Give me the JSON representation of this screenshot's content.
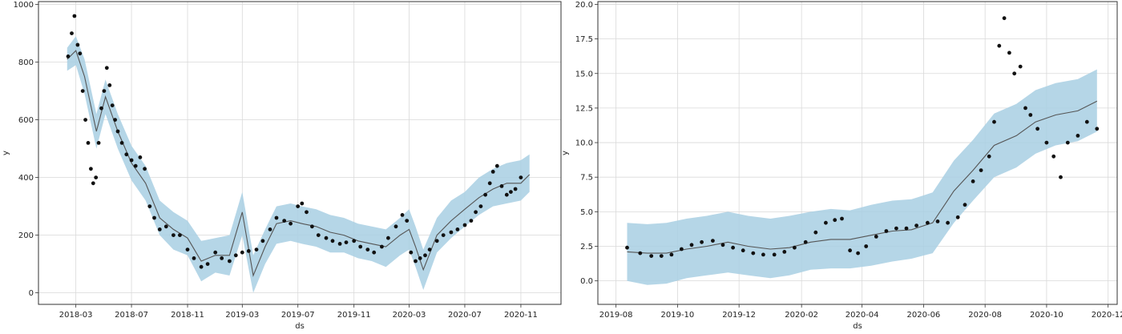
{
  "colors": {
    "band": "#a8cfe3",
    "trend": "#555555",
    "point": "#111111",
    "grid": "#d9d9d9"
  },
  "chart_data": [
    {
      "type": "line",
      "xlabel": "ds",
      "ylabel": "y",
      "x_ticks": [
        "2018-03",
        "2018-07",
        "2018-11",
        "2019-03",
        "2019-07",
        "2019-11",
        "2020-03",
        "2020-07",
        "2020-11"
      ],
      "y_ticks": [
        "0",
        "200",
        "400",
        "600",
        "800",
        "1000"
      ],
      "xlim": [
        "2017-12-09",
        "2021-01-28"
      ],
      "ylim": [
        -40,
        1010
      ],
      "grid": true,
      "forecast": {
        "x": [
          "2018-02-10",
          "2018-03-01",
          "2018-03-20",
          "2018-04-15",
          "2018-05-05",
          "2018-06-01",
          "2018-07-01",
          "2018-08-01",
          "2018-09-01",
          "2018-10-01",
          "2018-11-01",
          "2018-12-01",
          "2019-01-01",
          "2019-02-01",
          "2019-03-01",
          "2019-03-25",
          "2019-04-20",
          "2019-05-15",
          "2019-06-15",
          "2019-07-10",
          "2019-08-10",
          "2019-09-10",
          "2019-10-10",
          "2019-11-10",
          "2019-12-10",
          "2020-01-10",
          "2020-02-10",
          "2020-03-01",
          "2020-03-15",
          "2020-04-01",
          "2020-05-01",
          "2020-06-01",
          "2020-07-01",
          "2020-08-01",
          "2020-09-01",
          "2020-10-01",
          "2020-11-01",
          "2020-11-20"
        ],
        "yhat": [
          810,
          840,
          750,
          560,
          680,
          560,
          450,
          380,
          260,
          220,
          190,
          110,
          130,
          130,
          280,
          60,
          160,
          240,
          250,
          240,
          230,
          210,
          200,
          180,
          170,
          160,
          200,
          220,
          160,
          80,
          200,
          250,
          290,
          330,
          360,
          380,
          380,
          410
        ],
        "lower": [
          770,
          790,
          690,
          500,
          620,
          500,
          390,
          320,
          200,
          150,
          130,
          40,
          70,
          60,
          200,
          0,
          100,
          170,
          180,
          170,
          160,
          140,
          140,
          120,
          110,
          90,
          130,
          150,
          90,
          10,
          140,
          190,
          230,
          270,
          300,
          310,
          320,
          350
        ],
        "upper": [
          850,
          890,
          810,
          620,
          740,
          620,
          510,
          440,
          320,
          280,
          250,
          180,
          190,
          200,
          350,
          130,
          220,
          300,
          310,
          300,
          290,
          270,
          260,
          240,
          230,
          220,
          260,
          290,
          230,
          150,
          260,
          320,
          350,
          400,
          430,
          450,
          460,
          480
        ]
      },
      "observed": {
        "x": [
          "2018-02-12",
          "2018-02-20",
          "2018-02-26",
          "2018-03-05",
          "2018-03-10",
          "2018-03-16",
          "2018-03-22",
          "2018-03-28",
          "2018-04-03",
          "2018-04-08",
          "2018-04-14",
          "2018-04-20",
          "2018-04-26",
          "2018-05-02",
          "2018-05-08",
          "2018-05-14",
          "2018-05-20",
          "2018-05-26",
          "2018-06-01",
          "2018-06-10",
          "2018-06-20",
          "2018-07-01",
          "2018-07-10",
          "2018-07-20",
          "2018-07-30",
          "2018-08-10",
          "2018-08-20",
          "2018-09-01",
          "2018-09-15",
          "2018-10-01",
          "2018-10-15",
          "2018-11-01",
          "2018-11-15",
          "2018-12-01",
          "2018-12-15",
          "2019-01-01",
          "2019-01-15",
          "2019-02-01",
          "2019-02-15",
          "2019-03-01",
          "2019-03-15",
          "2019-04-01",
          "2019-04-15",
          "2019-05-01",
          "2019-05-15",
          "2019-06-01",
          "2019-06-15",
          "2019-07-01",
          "2019-07-10",
          "2019-07-20",
          "2019-08-01",
          "2019-08-15",
          "2019-09-01",
          "2019-09-15",
          "2019-10-01",
          "2019-10-15",
          "2019-11-01",
          "2019-11-15",
          "2019-12-01",
          "2019-12-15",
          "2020-01-01",
          "2020-01-15",
          "2020-02-01",
          "2020-02-15",
          "2020-02-25",
          "2020-03-05",
          "2020-03-15",
          "2020-03-25",
          "2020-04-05",
          "2020-04-15",
          "2020-05-01",
          "2020-05-15",
          "2020-06-01",
          "2020-06-15",
          "2020-07-01",
          "2020-07-15",
          "2020-07-25",
          "2020-08-05",
          "2020-08-15",
          "2020-08-25",
          "2020-09-01",
          "2020-09-10",
          "2020-09-20",
          "2020-10-01",
          "2020-10-10",
          "2020-10-20",
          "2020-11-01"
        ],
        "y": [
          820,
          900,
          960,
          860,
          830,
          700,
          600,
          520,
          430,
          380,
          400,
          520,
          640,
          700,
          780,
          720,
          650,
          600,
          560,
          520,
          480,
          460,
          440,
          470,
          430,
          300,
          260,
          220,
          230,
          200,
          200,
          150,
          120,
          90,
          100,
          140,
          120,
          110,
          130,
          140,
          145,
          150,
          180,
          220,
          260,
          250,
          240,
          300,
          310,
          280,
          230,
          200,
          190,
          180,
          170,
          175,
          180,
          160,
          150,
          140,
          160,
          190,
          230,
          270,
          250,
          140,
          110,
          120,
          130,
          150,
          180,
          200,
          210,
          220,
          235,
          250,
          280,
          300,
          340,
          380,
          420,
          440,
          370,
          340,
          350,
          360,
          400
        ]
      }
    },
    {
      "type": "line",
      "xlabel": "ds",
      "ylabel": "y",
      "x_ticks": [
        "2019-08",
        "2019-10",
        "2019-12",
        "2020-02",
        "2020-04",
        "2020-06",
        "2020-08",
        "2020-10",
        "2020-12"
      ],
      "y_ticks": [
        "0.0",
        "2.5",
        "5.0",
        "7.5",
        "10.0",
        "12.5",
        "15.0",
        "17.5",
        "20.0"
      ],
      "xlim": [
        "2019-07-14",
        "2020-12-10"
      ],
      "ylim": [
        -1.7,
        20.2
      ],
      "grid": true,
      "forecast": {
        "x": [
          "2019-08-12",
          "2019-09-01",
          "2019-09-20",
          "2019-10-10",
          "2019-10-30",
          "2019-11-20",
          "2019-12-10",
          "2020-01-01",
          "2020-01-20",
          "2020-02-10",
          "2020-03-01",
          "2020-03-20",
          "2020-04-10",
          "2020-05-01",
          "2020-05-20",
          "2020-06-10",
          "2020-07-01",
          "2020-07-20",
          "2020-08-10",
          "2020-09-01",
          "2020-09-20",
          "2020-10-10",
          "2020-11-01",
          "2020-11-20"
        ],
        "yhat": [
          2.1,
          2.0,
          2.0,
          2.3,
          2.5,
          2.8,
          2.5,
          2.3,
          2.4,
          2.8,
          3.0,
          3.0,
          3.3,
          3.6,
          3.7,
          4.2,
          6.5,
          8.0,
          9.8,
          10.5,
          11.5,
          12.0,
          12.3,
          13.0
        ],
        "lower": [
          0.0,
          -0.3,
          -0.2,
          0.2,
          0.4,
          0.6,
          0.4,
          0.2,
          0.4,
          0.8,
          0.9,
          0.9,
          1.1,
          1.4,
          1.6,
          2.0,
          4.2,
          5.8,
          7.5,
          8.2,
          9.2,
          9.8,
          10.1,
          10.8
        ],
        "upper": [
          4.2,
          4.1,
          4.2,
          4.5,
          4.7,
          5.0,
          4.7,
          4.5,
          4.7,
          5.0,
          5.2,
          5.1,
          5.5,
          5.8,
          5.9,
          6.4,
          8.7,
          10.2,
          12.1,
          12.8,
          13.8,
          14.3,
          14.6,
          15.3
        ]
      },
      "observed": {
        "x": [
          "2019-08-12",
          "2019-08-25",
          "2019-09-05",
          "2019-09-15",
          "2019-09-25",
          "2019-10-05",
          "2019-10-15",
          "2019-10-25",
          "2019-11-05",
          "2019-11-15",
          "2019-11-25",
          "2019-12-05",
          "2019-12-15",
          "2019-12-25",
          "2020-01-05",
          "2020-01-15",
          "2020-01-25",
          "2020-02-05",
          "2020-02-15",
          "2020-02-25",
          "2020-03-05",
          "2020-03-12",
          "2020-03-20",
          "2020-03-28",
          "2020-04-05",
          "2020-04-15",
          "2020-04-25",
          "2020-05-05",
          "2020-05-15",
          "2020-05-25",
          "2020-06-05",
          "2020-06-15",
          "2020-06-25",
          "2020-07-05",
          "2020-07-12",
          "2020-07-20",
          "2020-07-28",
          "2020-08-05",
          "2020-08-10",
          "2020-08-15",
          "2020-08-20",
          "2020-08-25",
          "2020-08-30",
          "2020-09-05",
          "2020-09-10",
          "2020-09-15",
          "2020-09-22",
          "2020-10-01",
          "2020-10-08",
          "2020-10-15",
          "2020-10-22",
          "2020-11-01",
          "2020-11-10",
          "2020-11-20"
        ],
        "y": [
          2.4,
          2.0,
          1.8,
          1.8,
          1.9,
          2.3,
          2.6,
          2.8,
          2.9,
          2.6,
          2.4,
          2.2,
          2.0,
          1.9,
          1.9,
          2.1,
          2.4,
          2.8,
          3.5,
          4.2,
          4.4,
          4.5,
          2.2,
          2.0,
          2.5,
          3.2,
          3.6,
          3.8,
          3.8,
          4.0,
          4.2,
          4.3,
          4.2,
          4.6,
          5.5,
          7.2,
          8.0,
          9.0,
          11.5,
          17.0,
          19.0,
          16.5,
          15.0,
          15.5,
          12.5,
          12.0,
          11.0,
          10.0,
          9.0,
          7.5,
          10.0,
          10.5,
          11.5,
          11.0
        ]
      }
    }
  ]
}
